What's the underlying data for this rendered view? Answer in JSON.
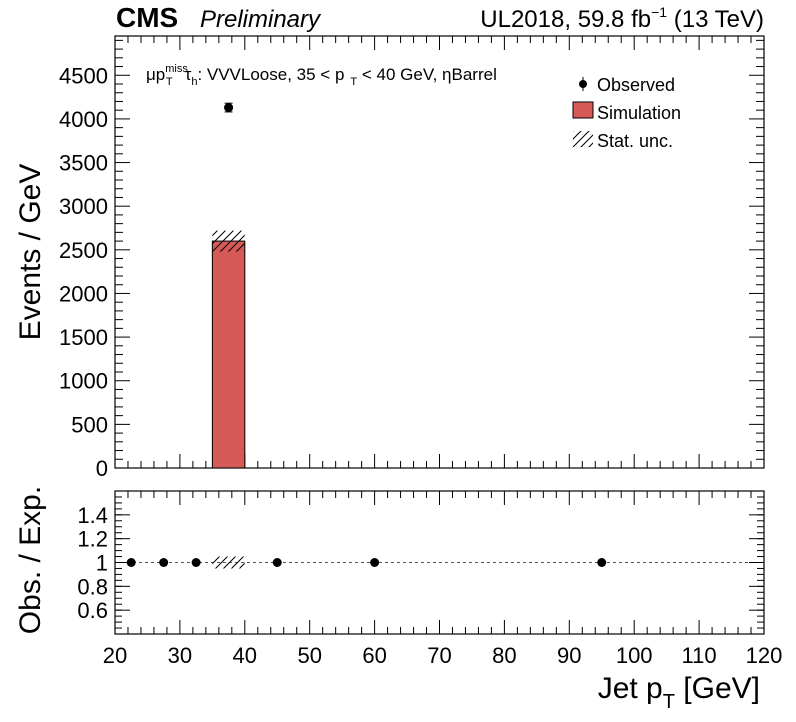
{
  "header": {
    "experiment": "CMS",
    "status": "Preliminary",
    "lumi_prefix": "UL2018, 59.8 fb",
    "lumi_exp": "−1",
    "lumi_suffix": " (13 TeV)"
  },
  "selection_label": {
    "mu": "μp",
    "miss": "miss",
    "T": "T",
    "tau": "τ",
    "h": "h",
    "text1": ": VVVLoose, 35 < p",
    "T2": "T",
    "text2": " < 40 GeV,  ηBarrel"
  },
  "legend": {
    "observed": "Observed",
    "simulation": "Simulation",
    "stat_unc": "Stat. unc."
  },
  "colors": {
    "simulation_fill": "#d65a55",
    "axis": "#000000",
    "reference_line": "#555555"
  },
  "chart_data": [
    {
      "type": "bar",
      "panel": "main",
      "ylabel": "Events / GeV",
      "xlim": [
        20,
        120
      ],
      "ylim": [
        0,
        4950
      ],
      "y_ticks": [
        0,
        500,
        1000,
        1500,
        2000,
        2500,
        3000,
        3500,
        4000,
        4500
      ],
      "y_tick_labels": [
        "0",
        "500",
        "1000",
        "1500",
        "2000",
        "2500",
        "3000",
        "3500",
        "4000",
        "4500"
      ],
      "simulation": {
        "bins": [
          [
            35,
            40
          ]
        ],
        "values": [
          2600
        ],
        "stat_unc": [
          120
        ]
      },
      "observed": {
        "x": [
          37.5
        ],
        "y": [
          4130
        ],
        "yerr": [
          50
        ]
      }
    },
    {
      "type": "scatter",
      "panel": "ratio",
      "ylabel": "Obs. / Exp.",
      "xlabel_main": "Jet p",
      "xlabel_sub": "T",
      "xlabel_unit": " [GeV]",
      "xlim": [
        20,
        120
      ],
      "ylim": [
        0.4,
        1.6
      ],
      "reference": 1.0,
      "y_ticks": [
        0.6,
        0.8,
        1.0,
        1.2,
        1.4
      ],
      "y_tick_labels": [
        "0.6",
        "0.8",
        "1",
        "1.2",
        "1.4"
      ],
      "x_ticks": [
        20,
        30,
        40,
        50,
        60,
        70,
        80,
        90,
        100,
        110,
        120
      ],
      "x_tick_labels": [
        "20",
        "30",
        "40",
        "50",
        "60",
        "70",
        "80",
        "90",
        "100",
        "110",
        "120"
      ],
      "points": {
        "x": [
          22.5,
          27.5,
          32.5,
          45,
          60,
          95
        ],
        "y": [
          1,
          1,
          1,
          1,
          1,
          1
        ]
      },
      "stat_unc_band": {
        "bins": [
          [
            35,
            40
          ]
        ],
        "low": [
          0.95
        ],
        "high": [
          1.05
        ]
      }
    }
  ]
}
